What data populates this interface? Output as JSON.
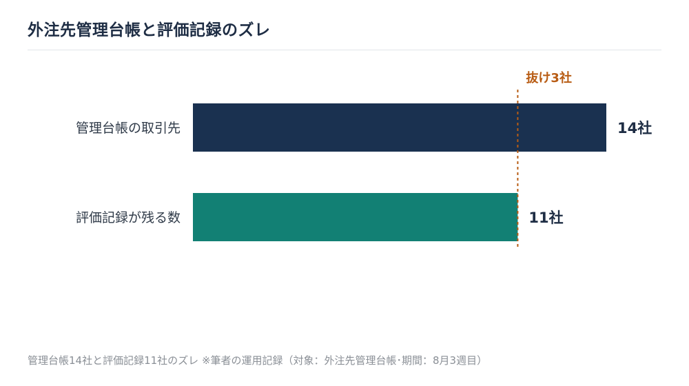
{
  "title": "外注先管理台帳と評価記録のズレ",
  "caption": "管理台帳14社と評価記録11社のズレ ※筆者の運用記録（対象：外注先管理台帳･期間：8月3週目）",
  "colors": {
    "title": "#1e2d44",
    "bar_registry": "#1a3150",
    "bar_evaluated": "#128074",
    "gap_marker": "#b85c14",
    "category_text": "#2f3a48",
    "value_text": "#1e2d44",
    "caption": "#8a8f96"
  },
  "chart_data": {
    "type": "bar",
    "orientation": "horizontal",
    "categories": [
      "管理台帳の取引先",
      "評価記録が残る数"
    ],
    "values": [
      14,
      11
    ],
    "value_labels": [
      "14社",
      "11社"
    ],
    "bar_colors": [
      "#1a3150",
      "#128074"
    ],
    "xlim": [
      0,
      14
    ],
    "grid": false,
    "annotation": {
      "text": "抜け3社",
      "at_value": 11,
      "line_style": "dashed"
    }
  }
}
